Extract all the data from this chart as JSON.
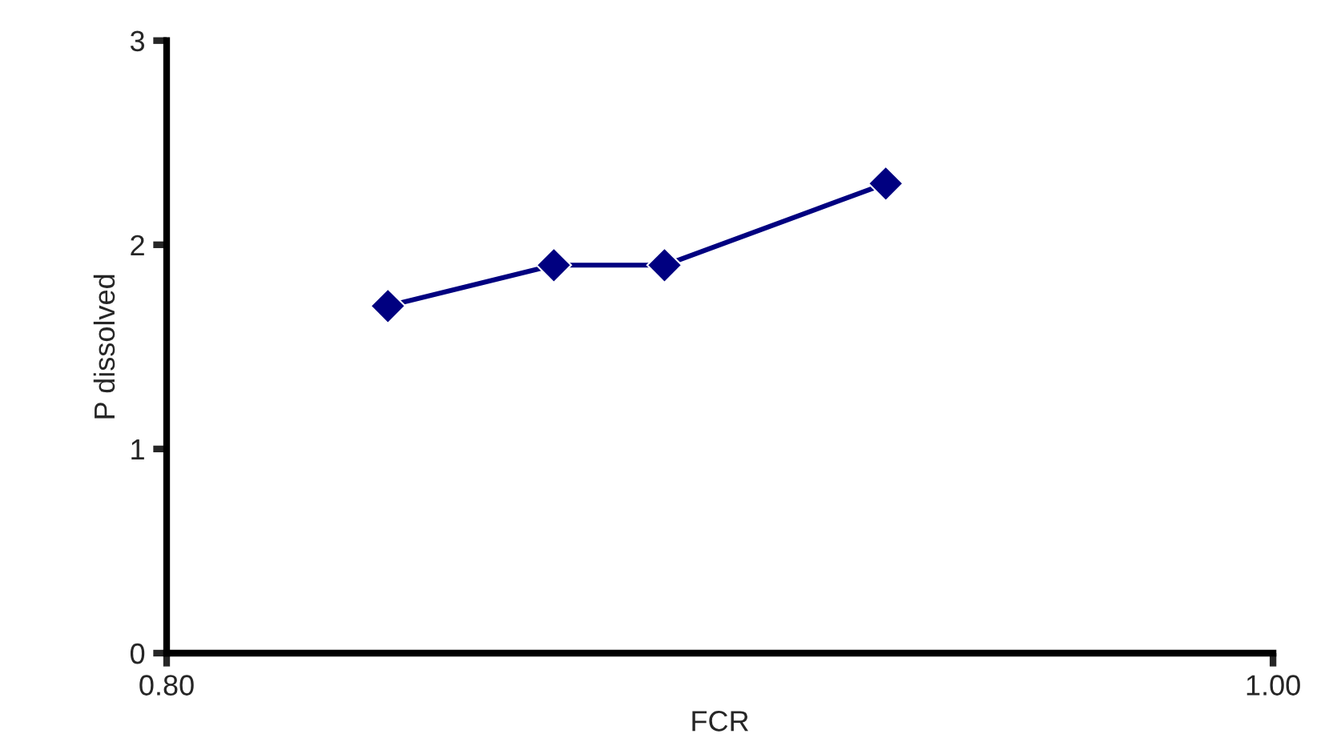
{
  "chart_data": {
    "type": "line",
    "xlabel": "FCR",
    "ylabel": "P dissolved",
    "x": [
      0.84,
      0.87,
      0.89,
      0.93
    ],
    "series": [
      {
        "color": "#000080",
        "values": [
          1.7,
          1.9,
          1.9,
          2.3
        ]
      }
    ],
    "xlim": [
      0.8,
      1.0
    ],
    "xticks": [
      {
        "value": 0.8,
        "label": "0.80"
      },
      {
        "value": 1.0,
        "label": "1.00"
      }
    ],
    "ylim": [
      0,
      3
    ],
    "yticks": [
      0,
      1,
      2,
      3
    ],
    "grid": false,
    "marker": "diamond",
    "line_style": "solid",
    "legend": false
  }
}
